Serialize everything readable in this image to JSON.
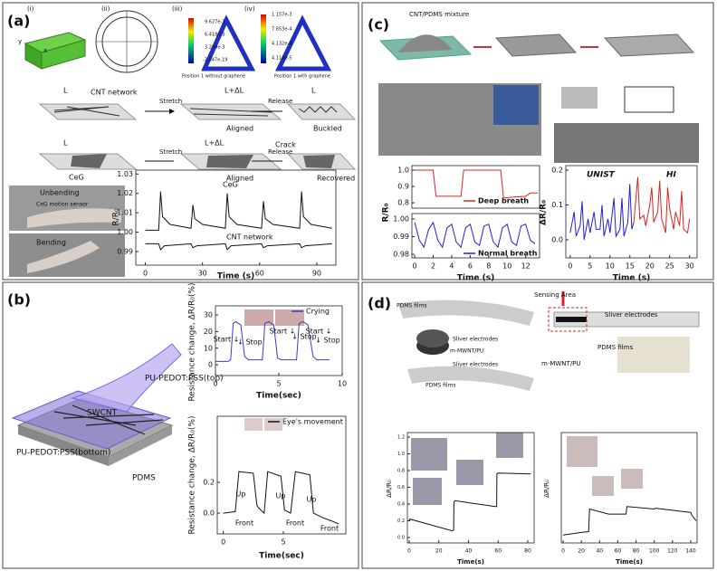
{
  "panels": [
    {
      "label": "(a)",
      "annotations": [
        "(i)",
        "(ii)",
        "(iii)",
        "(iv)",
        "y",
        "x",
        "9.627e-3",
        "6.418e-3",
        "3.209e-3",
        "-2.047e-19",
        "1.157e-3",
        "7.853e-4",
        "4.132e-4",
        "4.114e-5",
        "Position 1 without graphene",
        "Position 1 with graphene",
        "CNT network",
        "L",
        "L+ΔL",
        "L",
        "Stretch",
        "Release",
        "Aligned",
        "Buckled",
        "L",
        "L+ΔL",
        "Stretch",
        "Crack",
        "Release",
        "CeG",
        "Aligned",
        "Recovered",
        "Unbending",
        "CeG motion sensor",
        "Bending"
      ],
      "plots": [
        {
          "xlabel": "Time (s)",
          "ylabel": "R/R₀",
          "xlim": [
            -5,
            100
          ],
          "ylim": [
            0.983,
            1.032
          ],
          "xticks": [
            0,
            30,
            60,
            90
          ],
          "yticks": [
            0.99,
            {
              "value": 1,
              "label": "1.00"
            },
            1.01,
            1.02,
            1.03
          ],
          "series": [
            {
              "name": "CeG",
              "color": "#111111",
              "x": [
                0,
                7,
                8,
                9,
                13,
                24,
                25,
                26,
                30,
                42,
                43,
                44,
                48,
                61,
                62,
                63,
                67,
                81,
                82,
                83,
                87,
                98
              ],
              "y": [
                1.001,
                1.001,
                1.021,
                1.008,
                1.004,
                1.002,
                1.014,
                1.007,
                1.004,
                1.002,
                1.02,
                1.008,
                1.004,
                1.002,
                1.016,
                1.007,
                1.004,
                1.002,
                1.021,
                1.008,
                1.004,
                1.002
              ]
            },
            {
              "name": "CNT network",
              "color": "#111111",
              "x": [
                0,
                7,
                8,
                10,
                24,
                25,
                27,
                42,
                43,
                45,
                61,
                62,
                64,
                81,
                82,
                84,
                98
              ],
              "y": [
                0.994,
                0.994,
                0.991,
                0.993,
                0.994,
                0.992,
                0.993,
                0.994,
                0.991,
                0.993,
                0.994,
                0.992,
                0.993,
                0.994,
                0.992,
                0.993,
                0.994
              ]
            }
          ]
        }
      ]
    },
    {
      "label": "(b)",
      "annotations": [
        "PU-PEDOT:PSS(top)",
        "SWCNT",
        "PU-PEDOT:PSS(bottom)",
        "PDMS"
      ],
      "plots": [
        {
          "xlabel": "Time(sec)",
          "ylabel": "Resistance change, ΔR/R₀(%)",
          "xlim": [
            0,
            10
          ],
          "ylim": [
            -6.5,
            35.5
          ],
          "xticks": [
            0,
            5,
            10
          ],
          "yticks": [
            0,
            10,
            20,
            30
          ],
          "notes": [
            "Start ↓",
            "↓ Stop",
            "Start ↓",
            "↓ Stop",
            "Start ↓",
            "↓ Stop"
          ],
          "series": [
            {
              "name": "Crying",
              "color": "#3b3bd6",
              "x": [
                0,
                1,
                1.2,
                1.4,
                1.6,
                2,
                2.3,
                2.6,
                3.7,
                3.9,
                4.2,
                4.6,
                4.9,
                5.2,
                6.4,
                6.6,
                6.9,
                7.3,
                7.7,
                8,
                9
              ],
              "y": [
                2,
                2,
                3,
                25,
                26,
                24,
                5,
                3,
                3,
                25,
                26,
                24,
                4,
                3,
                3,
                25,
                26,
                24,
                5,
                3,
                3
              ]
            }
          ]
        },
        {
          "xlabel": "Time(sec)",
          "ylabel": "Resistance change, ΔR/R₀(%)",
          "xlim": [
            -0.5,
            10.2
          ],
          "ylim": [
            -0.135,
            0.63
          ],
          "xticks": [
            0,
            5
          ],
          "yticks": [
            {
              "value": 0,
              "label": "0.0"
            },
            0.2
          ],
          "notes": [
            "Up",
            "Up",
            "Up",
            "Front",
            "Front",
            "Front"
          ],
          "series": [
            {
              "name": "Eye's movement",
              "color": "#111111",
              "x": [
                0,
                1,
                1.3,
                2.5,
                2.8,
                3,
                3.4,
                3.7,
                4.8,
                5.1,
                5.6,
                6,
                7.2,
                7.5,
                8.3,
                9,
                9.6
              ],
              "y": [
                0,
                0.01,
                0.27,
                0.26,
                0.05,
                0.03,
                0,
                0.27,
                0.24,
                0.02,
                0,
                0.27,
                0.25,
                0,
                -0.03,
                -0.05,
                -0.07
              ]
            }
          ]
        }
      ]
    },
    {
      "label": "(c)",
      "annotations": [
        "CNT/PDMS mixture"
      ],
      "plots": [
        {
          "ylabel": "R/R₀",
          "xlim": [
            -0.3,
            13.5
          ],
          "ylim": [
            0.767,
            1.028
          ],
          "yticks": [
            0.8,
            0.9,
            {
              "value": 1,
              "label": "1.0"
            }
          ],
          "series": [
            {
              "name": "Deep breath",
              "color": "#e02020",
              "x": [
                0,
                2,
                2.3,
                5,
                5.3,
                9.3,
                9.6,
                12,
                12.5,
                13.3
              ],
              "y": [
                1,
                1,
                0.84,
                0.84,
                1,
                1,
                0.83,
                0.84,
                0.86,
                0.86
              ]
            }
          ]
        },
        {
          "xlabel": "Time (s)",
          "xlim": [
            -0.3,
            13.5
          ],
          "ylim": [
            0.978,
            1.003
          ],
          "xticks": [
            0,
            2,
            4,
            6,
            8,
            10,
            12
          ],
          "yticks": [
            0.98,
            0.99,
            {
              "value": 1,
              "label": "1.00"
            }
          ],
          "series": [
            {
              "name": "Normal breath",
              "color": "#2020e0",
              "x": [
                0,
                0.5,
                1,
                1.5,
                2,
                2.5,
                3,
                3.5,
                4,
                4.5,
                5,
                5.5,
                6,
                6.5,
                7,
                7.5,
                8,
                8.5,
                9,
                9.5,
                10,
                10.5,
                11,
                11.5,
                12,
                12.5,
                13
              ],
              "y": [
                0.998,
                0.988,
                0.984,
                0.994,
                0.998,
                0.988,
                0.984,
                0.995,
                0.997,
                0.987,
                0.984,
                0.995,
                0.997,
                0.987,
                0.985,
                0.996,
                0.997,
                0.987,
                0.984,
                0.995,
                0.997,
                0.987,
                0.985,
                0.996,
                0.997,
                0.988,
                0.986
              ]
            }
          ]
        },
        {
          "xlabel": "Time (s)",
          "ylabel": "ΔR/R₀",
          "xlim": [
            -1.1,
            31.9
          ],
          "ylim": [
            -0.052,
            0.213
          ],
          "xticks": [
            0,
            5,
            10,
            15,
            20,
            25,
            30
          ],
          "yticks": [
            {
              "value": 0,
              "label": "0.0"
            },
            0.1,
            0.2
          ],
          "series": [
            {
              "name": "UNIST",
              "color": "#2020d0",
              "x": [
                0,
                1,
                1.5,
                2.5,
                3,
                3.5,
                4.5,
                5,
                6,
                6.5,
                7.5,
                8,
                8.5,
                9.5,
                10,
                11,
                11.5,
                12.5,
                13,
                13.5,
                14.5,
                15,
                15.5,
                16
              ],
              "y": [
                0.02,
                0.08,
                0.01,
                0.04,
                0.11,
                0,
                0.06,
                0.02,
                0.08,
                0.03,
                0.03,
                0.1,
                0.01,
                0.06,
                0.02,
                0.12,
                0.01,
                0.03,
                0.12,
                0.01,
                0.05,
                0.16,
                0.03,
                0.05
              ]
            },
            {
              "name": "HI",
              "color": "#e02020",
              "x": [
                16,
                17,
                17.5,
                18.5,
                19,
                20,
                20.5,
                21,
                22,
                22.5,
                23,
                24,
                24.5,
                25,
                26,
                26.5,
                27.5,
                28,
                28.5,
                29.5,
                30
              ],
              "y": [
                0.05,
                0.18,
                0.06,
                0.07,
                0.04,
                0.1,
                0.15,
                0.05,
                0.08,
                0.17,
                0.06,
                0.02,
                0.15,
                0.09,
                0.03,
                0.08,
                0.04,
                0.14,
                0.03,
                0.02,
                0.06
              ]
            }
          ]
        }
      ]
    },
    {
      "label": "(d)",
      "annotations": [
        "PDMS films",
        "Sliver electrodes",
        "m-MWNT/PU",
        "Sliver electrodes",
        "PDMS films",
        "Sensing Area",
        "Sliver electrodes",
        "PDMS films",
        "m-MWNT/PU"
      ],
      "plots": [
        {
          "xlabel": "Time(s)",
          "ylabel": "ΔR/R₀",
          "xlim": [
            -1.2,
            84.3
          ],
          "ylim": [
            -0.065,
            1.254
          ],
          "xticks": [
            0,
            20,
            40,
            60,
            80
          ],
          "yticks": [
            {
              "value": 0,
              "label": "0.0"
            },
            0.2,
            0.4,
            0.6,
            0.8,
            {
              "value": 1,
              "label": "1.0"
            },
            1.2
          ],
          "series": [
            {
              "color": "#111111",
              "x": [
                0,
                0.5,
                29,
                30,
                30.2,
                31,
                58,
                59,
                59.2,
                60,
                82
              ],
              "y": [
                0.2,
                0.22,
                0.08,
                0.09,
                0.42,
                0.44,
                0.37,
                0.37,
                0.76,
                0.77,
                0.76
              ]
            }
          ]
        },
        {
          "xlabel": "Time(s)",
          "ylabel": "ΔR/R₀",
          "xlim": [
            -2,
            147
          ],
          "ylim": [
            -0.065,
            1.254
          ],
          "xticks": [
            0,
            20,
            40,
            60,
            80,
            100,
            120,
            140
          ],
          "series": [
            {
              "color": "#111111",
              "x": [
                0,
                20,
                28,
                29,
                50,
                69,
                70,
                100,
                101,
                140,
                141,
                146
              ],
              "y": [
                0.03,
                0.06,
                0.07,
                0.34,
                0.28,
                0.28,
                0.37,
                0.34,
                0.35,
                0.3,
                0.27,
                0.2
              ]
            }
          ]
        }
      ]
    }
  ]
}
